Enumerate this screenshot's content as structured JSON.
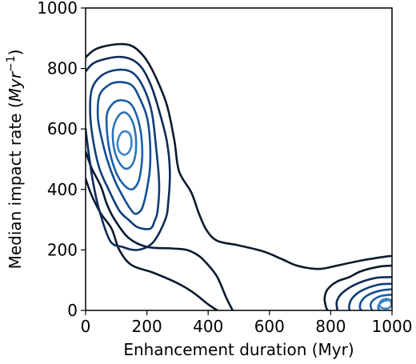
{
  "chart_data": {
    "type": "contour",
    "title": "",
    "xlabel": "Enhancement duration (Myr)",
    "ylabel": "Median impact rate (",
    "ylabel_unit": "Myr",
    "ylabel_unit_exp": "−1",
    "ylabel_close": ")",
    "xlim": [
      0,
      1000
    ],
    "ylim": [
      0,
      1000
    ],
    "x_ticks": [
      0,
      200,
      400,
      600,
      800,
      1000
    ],
    "y_ticks": [
      0,
      200,
      400,
      600,
      800,
      1000
    ],
    "grid": false,
    "colormap": "Blues",
    "level_colors": [
      "#0b1a2e",
      "#0e2b56",
      "#0f3d7a",
      "#134d94",
      "#1a5fa8",
      "#2a72ba",
      "#3a85c8"
    ],
    "contours": [
      {
        "level": 1,
        "points": [
          [
            0,
            837
          ],
          [
            35,
            865
          ],
          [
            100,
            880
          ],
          [
            150,
            875
          ],
          [
            190,
            840
          ],
          [
            225,
            780
          ],
          [
            265,
            680
          ],
          [
            290,
            560
          ],
          [
            305,
            460
          ],
          [
            345,
            390
          ],
          [
            370,
            320
          ],
          [
            395,
            265
          ],
          [
            430,
            230
          ],
          [
            500,
            215
          ],
          [
            580,
            195
          ],
          [
            640,
            170
          ],
          [
            690,
            148
          ],
          [
            760,
            137
          ],
          [
            820,
            148
          ],
          [
            900,
            165
          ],
          [
            980,
            178
          ],
          [
            1000,
            180
          ]
        ]
      },
      {
        "level": 1,
        "points": [
          [
            0,
            525
          ],
          [
            20,
            470
          ],
          [
            50,
            410
          ],
          [
            70,
            350
          ],
          [
            95,
            300
          ],
          [
            140,
            240
          ],
          [
            200,
            210
          ],
          [
            280,
            205
          ],
          [
            330,
            200
          ],
          [
            370,
            180
          ],
          [
            400,
            150
          ],
          [
            430,
            110
          ],
          [
            460,
            40
          ],
          [
            480,
            0
          ]
        ]
      },
      {
        "level": 1,
        "points": [
          [
            0,
            435
          ],
          [
            20,
            380
          ],
          [
            50,
            320
          ],
          [
            85,
            270
          ],
          [
            110,
            200
          ],
          [
            150,
            150
          ],
          [
            220,
            125
          ],
          [
            300,
            90
          ],
          [
            350,
            60
          ],
          [
            400,
            20
          ],
          [
            430,
            0
          ]
        ]
      },
      {
        "level": 1,
        "points": [
          [
            1000,
            148
          ],
          [
            960,
            145
          ],
          [
            900,
            130
          ],
          [
            860,
            110
          ],
          [
            820,
            95
          ],
          [
            790,
            70
          ],
          [
            780,
            40
          ],
          [
            785,
            10
          ],
          [
            790,
            0
          ]
        ]
      },
      {
        "level": 2,
        "points": [
          [
            0,
            790
          ],
          [
            30,
            820
          ],
          [
            100,
            838
          ],
          [
            150,
            830
          ],
          [
            185,
            800
          ],
          [
            215,
            740
          ],
          [
            240,
            660
          ],
          [
            265,
            560
          ],
          [
            275,
            460
          ],
          [
            270,
            360
          ],
          [
            260,
            300
          ],
          [
            220,
            225
          ],
          [
            170,
            200
          ],
          [
            120,
            210
          ],
          [
            80,
            230
          ],
          [
            45,
            330
          ],
          [
            25,
            420
          ],
          [
            10,
            520
          ],
          [
            0,
            600
          ]
        ]
      },
      {
        "level": 2,
        "points": [
          [
            1000,
            110
          ],
          [
            950,
            108
          ],
          [
            890,
            90
          ],
          [
            840,
            60
          ],
          [
            820,
            30
          ],
          [
            822,
            0
          ]
        ]
      },
      {
        "level": 3,
        "points": [
          [
            20,
            730
          ],
          [
            50,
            775
          ],
          [
            100,
            795
          ],
          [
            150,
            788
          ],
          [
            185,
            745
          ],
          [
            215,
            660
          ],
          [
            230,
            540
          ],
          [
            240,
            420
          ],
          [
            235,
            330
          ],
          [
            225,
            295
          ],
          [
            210,
            270
          ],
          [
            170,
            275
          ],
          [
            140,
            300
          ],
          [
            110,
            330
          ],
          [
            75,
            400
          ],
          [
            45,
            470
          ],
          [
            25,
            560
          ],
          [
            15,
            650
          ]
        ]
      },
      {
        "level": 3,
        "points": [
          [
            1000,
            88
          ],
          [
            955,
            85
          ],
          [
            900,
            65
          ],
          [
            870,
            40
          ],
          [
            860,
            15
          ],
          [
            862,
            0
          ]
        ]
      },
      {
        "level": 4,
        "points": [
          [
            45,
            710
          ],
          [
            75,
            745
          ],
          [
            110,
            755
          ],
          [
            150,
            745
          ],
          [
            175,
            705
          ],
          [
            200,
            640
          ],
          [
            210,
            560
          ],
          [
            210,
            470
          ],
          [
            200,
            400
          ],
          [
            190,
            355
          ],
          [
            180,
            330
          ],
          [
            160,
            320
          ],
          [
            140,
            345
          ],
          [
            120,
            380
          ],
          [
            95,
            430
          ],
          [
            70,
            500
          ],
          [
            50,
            580
          ],
          [
            40,
            640
          ]
        ]
      },
      {
        "level": 4,
        "points": [
          [
            1000,
            70
          ],
          [
            960,
            65
          ],
          [
            920,
            50
          ],
          [
            900,
            30
          ],
          [
            895,
            10
          ],
          [
            900,
            0
          ]
        ]
      },
      {
        "level": 5,
        "points": [
          [
            70,
            650
          ],
          [
            90,
            685
          ],
          [
            115,
            695
          ],
          [
            145,
            685
          ],
          [
            165,
            650
          ],
          [
            180,
            590
          ],
          [
            185,
            520
          ],
          [
            180,
            460
          ],
          [
            170,
            420
          ],
          [
            150,
            400
          ],
          [
            125,
            415
          ],
          [
            100,
            455
          ],
          [
            80,
            520
          ],
          [
            70,
            590
          ]
        ]
      },
      {
        "level": 5,
        "points": [
          [
            1000,
            52
          ],
          [
            965,
            48
          ],
          [
            940,
            35
          ],
          [
            930,
            18
          ],
          [
            935,
            0
          ]
        ]
      },
      {
        "level": 6,
        "points": [
          [
            90,
            600
          ],
          [
            105,
            640
          ],
          [
            125,
            655
          ],
          [
            145,
            640
          ],
          [
            160,
            600
          ],
          [
            165,
            545
          ],
          [
            158,
            495
          ],
          [
            140,
            470
          ],
          [
            120,
            475
          ],
          [
            100,
            510
          ],
          [
            90,
            555
          ]
        ]
      },
      {
        "level": 6,
        "points": [
          [
            1000,
            35
          ],
          [
            975,
            32
          ],
          [
            958,
            20
          ],
          [
            955,
            8
          ],
          [
            960,
            0
          ]
        ]
      },
      {
        "level": 7,
        "points": [
          [
            105,
            560
          ],
          [
            115,
            585
          ],
          [
            130,
            592
          ],
          [
            145,
            582
          ],
          [
            150,
            555
          ],
          [
            145,
            530
          ],
          [
            130,
            515
          ],
          [
            113,
            522
          ],
          [
            105,
            540
          ]
        ]
      },
      {
        "level": 7,
        "points": [
          [
            960,
            25
          ],
          [
            970,
            35
          ],
          [
            985,
            38
          ],
          [
            995,
            30
          ],
          [
            998,
            18
          ],
          [
            990,
            8
          ],
          [
            975,
            6
          ],
          [
            962,
            12
          ]
        ]
      }
    ]
  }
}
